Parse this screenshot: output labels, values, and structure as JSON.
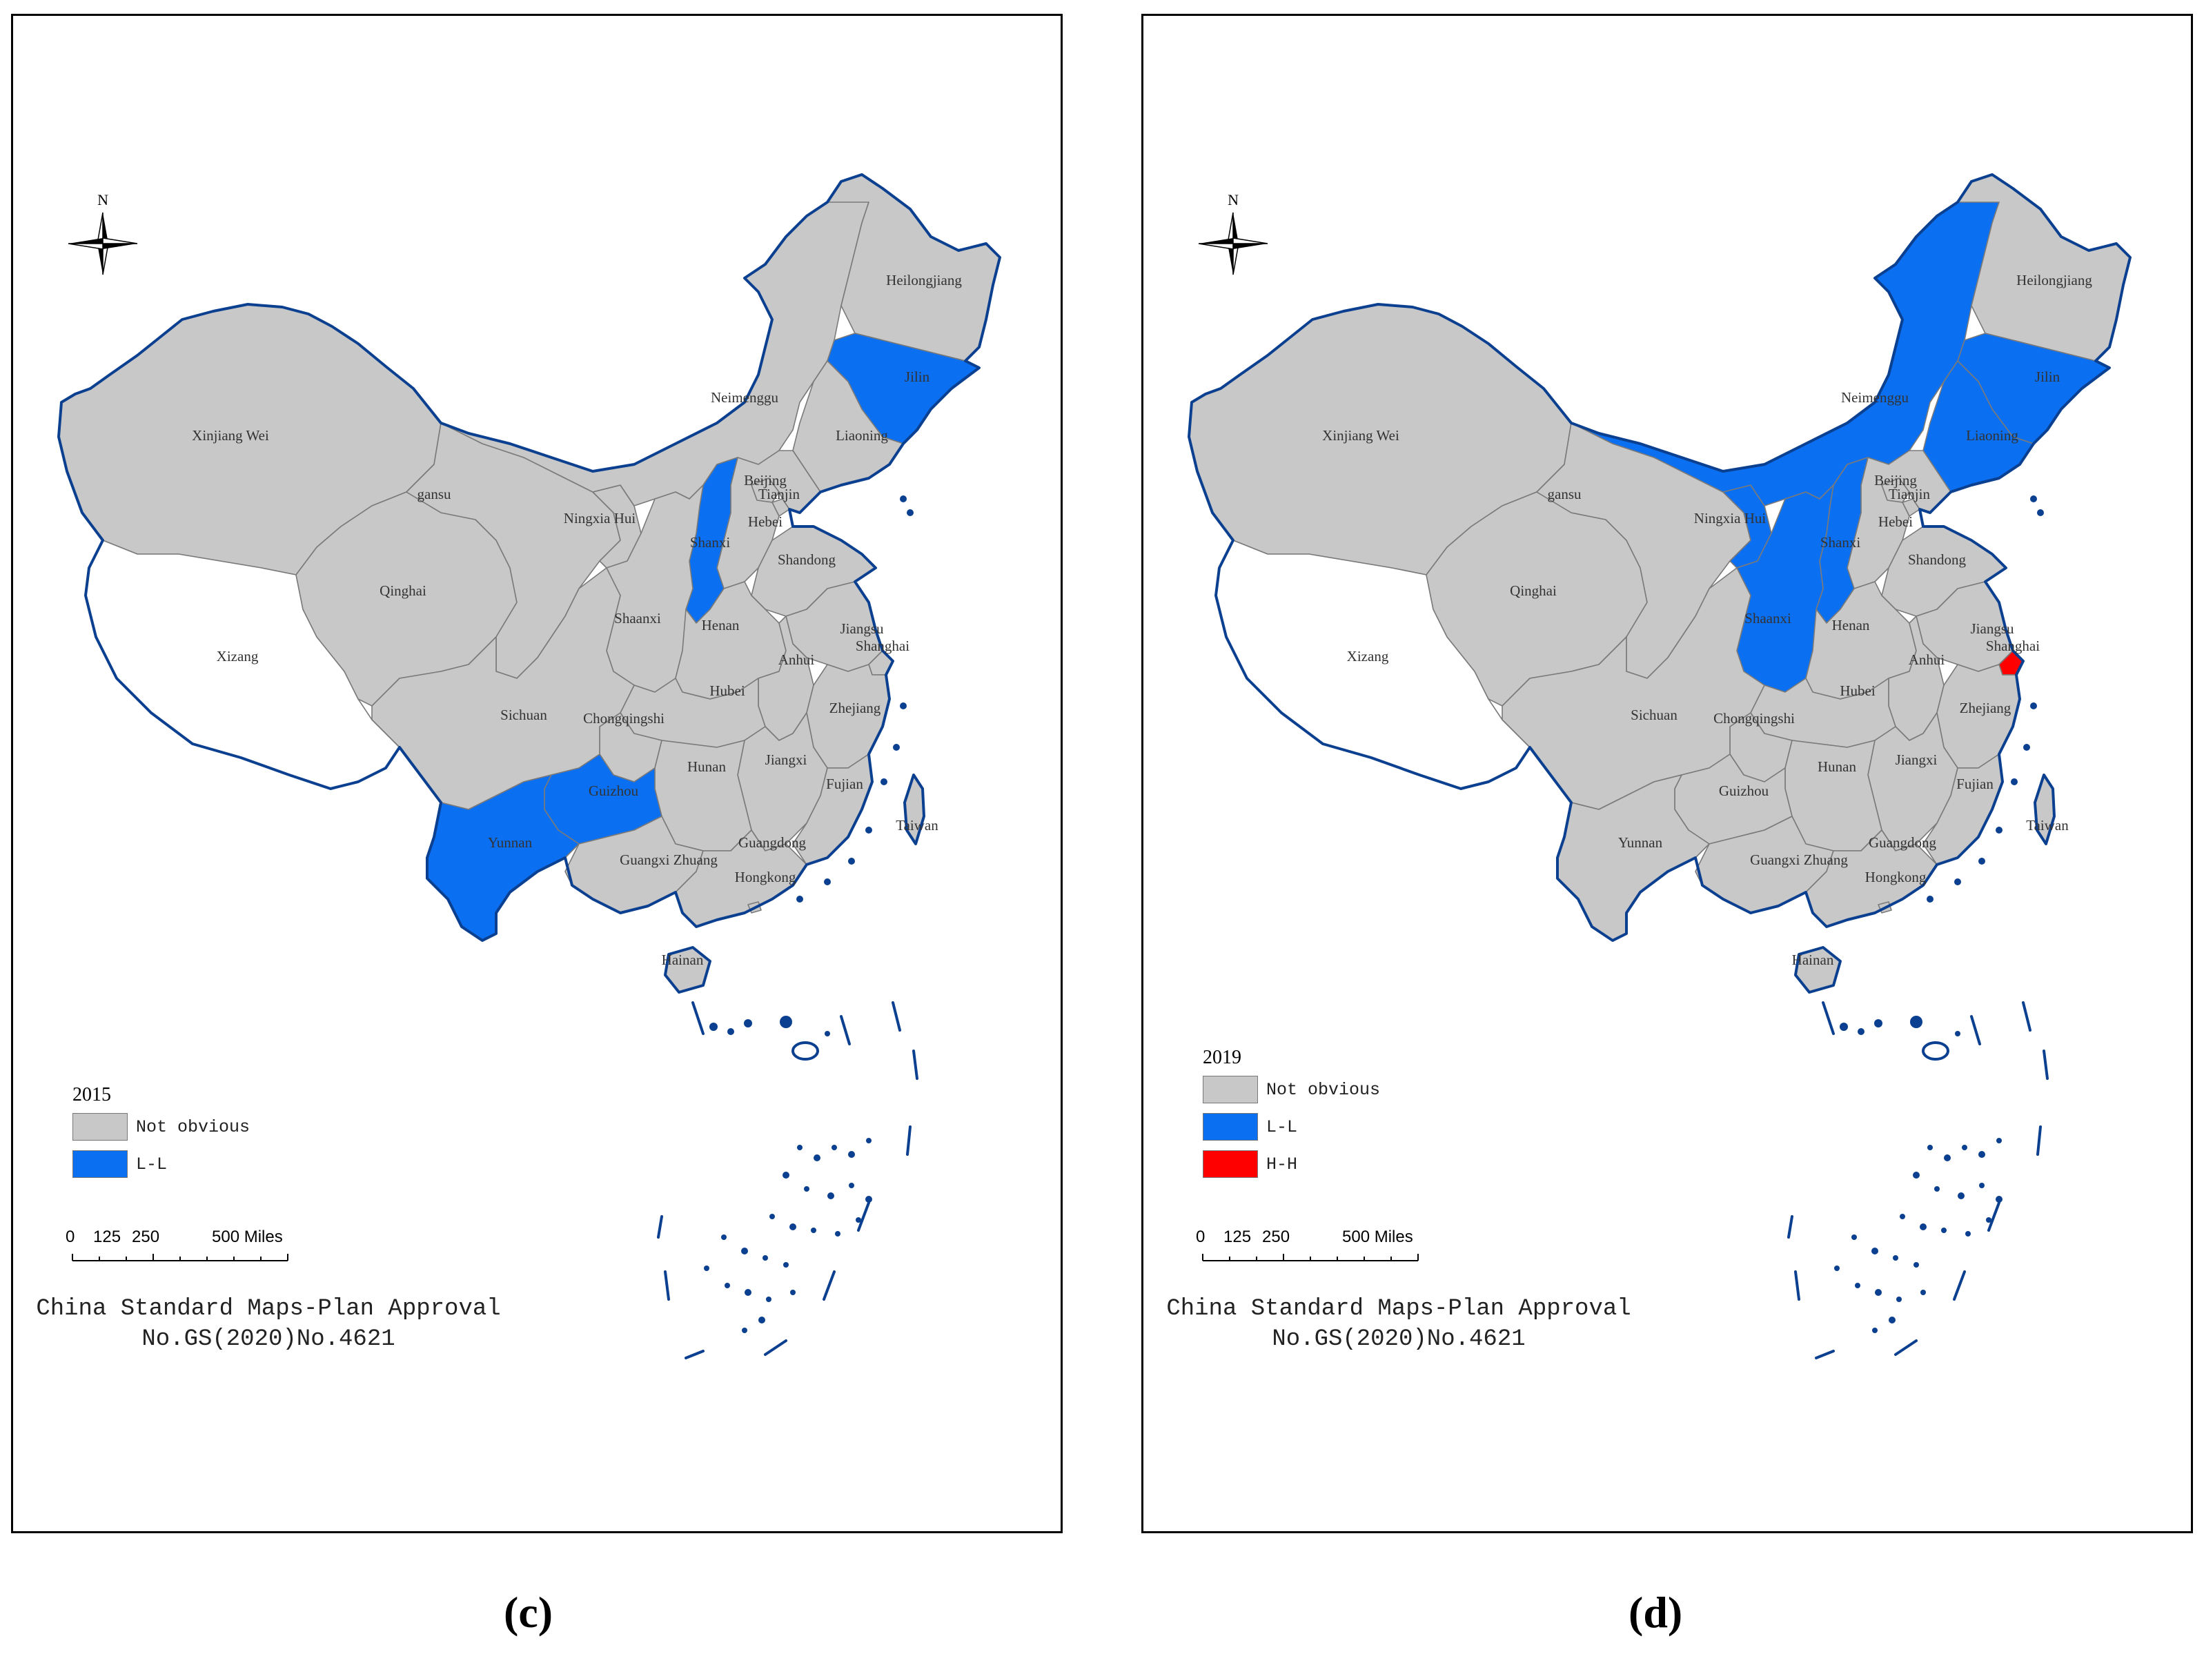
{
  "colors": {
    "not_obvious": "#c8c8c8",
    "l_l": "#0a6ff0",
    "h_h": "#ff0000",
    "no_data": "#ffffff",
    "coastline": "#0b3f8f"
  },
  "north_arrow": {
    "label": "N",
    "icon": "compass-rose-icon"
  },
  "legend_categories": {
    "not_obvious": "Not obvious",
    "l_l": "L-L",
    "h_h": "H-H"
  },
  "province_labels": {
    "xinjiang": "Xinjiang Wei",
    "xizang": "Xizang",
    "qinghai": "Qinghai",
    "gansu": "gansu",
    "neimenggu": "Neimenggu",
    "heilongjiang": "Heilongjiang",
    "jilin": "Jilin",
    "liaoning": "Liaoning",
    "beijing": "Beijing",
    "tianjin": "Tianjin",
    "hebei": "Hebei",
    "shanxi": "Shanxi",
    "shandong": "Shandong",
    "ningxia": "Ningxia Hui",
    "shaanxi": "Shaanxi",
    "henan": "Henan",
    "jiangsu": "Jiangsu",
    "shanghai": "Shanghai",
    "anhui": "Anhui",
    "hubei": "Hubei",
    "sichuan": "Sichuan",
    "chongqing": "Chongqingshi",
    "zhejiang": "Zhejiang",
    "jiangxi": "Jiangxi",
    "hunan": "Hunan",
    "guizhou": "Guizhou",
    "fujian": "Fujian",
    "taiwan": "Taiwan",
    "yunnan": "Yunnan",
    "guangxi": "Guangxi Zhuang",
    "guangdong": "Guangdong",
    "hongkong": "Hongkong",
    "hainan": "Hainan"
  },
  "scale_bar": {
    "ticks": [
      "0",
      "125",
      "250",
      "500 Miles"
    ]
  },
  "approval": {
    "line1": "China Standard Maps-Plan Approval",
    "line2": "No.GS(2020)No.4621"
  },
  "panels": [
    {
      "id": "c",
      "caption": "(c)",
      "year": "2015",
      "legend": [
        "not_obvious",
        "l_l"
      ],
      "classification": {
        "xinjiang": "not_obvious",
        "xizang": "no_data",
        "qinghai": "not_obvious",
        "gansu": "not_obvious",
        "neimenggu": "not_obvious",
        "heilongjiang": "not_obvious",
        "jilin": "l_l",
        "liaoning": "not_obvious",
        "beijing": "not_obvious",
        "tianjin": "not_obvious",
        "hebei": "not_obvious",
        "shanxi": "l_l",
        "shandong": "not_obvious",
        "ningxia": "not_obvious",
        "shaanxi": "not_obvious",
        "henan": "not_obvious",
        "jiangsu": "not_obvious",
        "shanghai": "not_obvious",
        "anhui": "not_obvious",
        "hubei": "not_obvious",
        "sichuan": "not_obvious",
        "chongqing": "not_obvious",
        "zhejiang": "not_obvious",
        "jiangxi": "not_obvious",
        "hunan": "not_obvious",
        "guizhou": "l_l",
        "fujian": "not_obvious",
        "taiwan": "not_obvious",
        "yunnan": "l_l",
        "guangxi": "not_obvious",
        "guangdong": "not_obvious",
        "hongkong": "not_obvious",
        "hainan": "not_obvious"
      }
    },
    {
      "id": "d",
      "caption": "(d)",
      "year": "2019",
      "legend": [
        "not_obvious",
        "l_l",
        "h_h"
      ],
      "classification": {
        "xinjiang": "not_obvious",
        "xizang": "no_data",
        "qinghai": "not_obvious",
        "gansu": "not_obvious",
        "neimenggu": "l_l",
        "heilongjiang": "not_obvious",
        "jilin": "l_l",
        "liaoning": "l_l",
        "beijing": "not_obvious",
        "tianjin": "not_obvious",
        "hebei": "not_obvious",
        "shanxi": "l_l",
        "shandong": "not_obvious",
        "ningxia": "l_l",
        "shaanxi": "l_l",
        "henan": "not_obvious",
        "jiangsu": "not_obvious",
        "shanghai": "h_h",
        "anhui": "not_obvious",
        "hubei": "not_obvious",
        "sichuan": "not_obvious",
        "chongqing": "not_obvious",
        "zhejiang": "not_obvious",
        "jiangxi": "not_obvious",
        "hunan": "not_obvious",
        "guizhou": "not_obvious",
        "fujian": "not_obvious",
        "taiwan": "not_obvious",
        "yunnan": "not_obvious",
        "guangxi": "not_obvious",
        "guangdong": "not_obvious",
        "hongkong": "not_obvious",
        "hainan": "not_obvious"
      }
    }
  ]
}
